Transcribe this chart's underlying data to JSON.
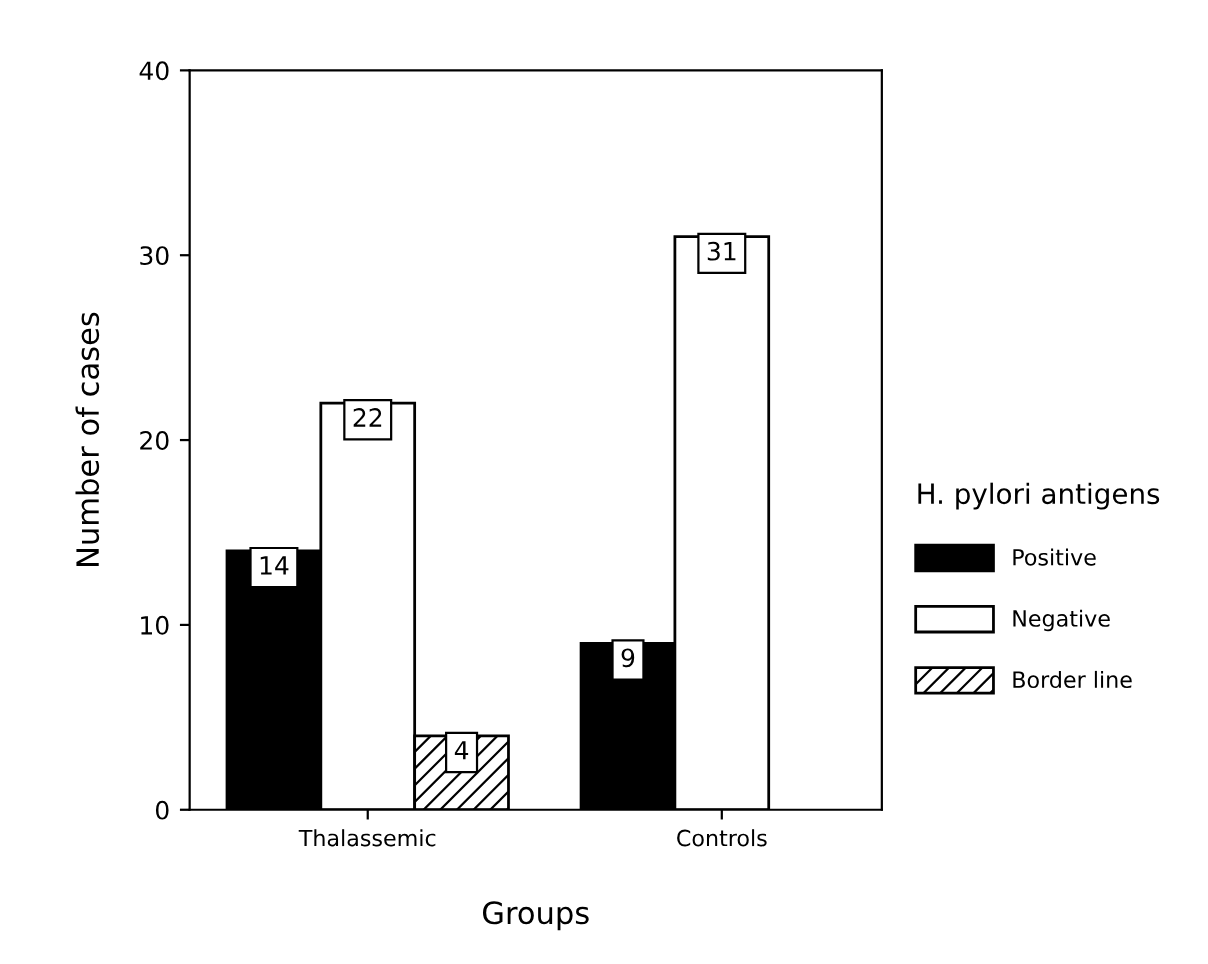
{
  "chart_data": {
    "type": "bar",
    "xlabel": "Groups",
    "ylabel": "Number of cases",
    "legend_title": "H. pylori antigens",
    "categories": [
      "Thalassemic",
      "Controls"
    ],
    "series": [
      {
        "name": "Positive",
        "color": "#000000",
        "values": [
          14,
          9
        ]
      },
      {
        "name": "Negative",
        "color": "#ffffff",
        "values": [
          22,
          31
        ]
      },
      {
        "name": "Border line",
        "color": "#ffffff",
        "values": [
          4,
          null
        ]
      }
    ],
    "ylim": [
      0,
      40
    ],
    "yticks": [
      0,
      10,
      20,
      30,
      40
    ],
    "grid": false,
    "legend": "right",
    "data_labels": true
  }
}
